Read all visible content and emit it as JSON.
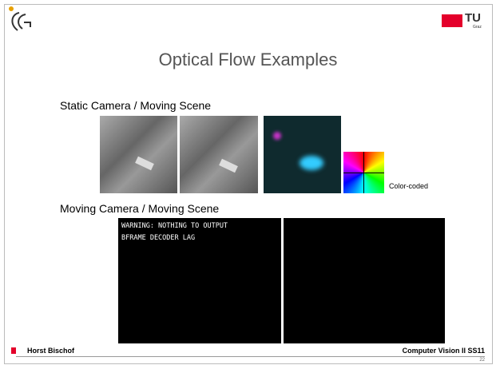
{
  "header": {
    "logo_text": "TU",
    "logo_subtext": "Graz"
  },
  "title": "Optical Flow Examples",
  "sections": [
    {
      "heading": "Static Camera / Moving Scene",
      "caption": "Color-coded"
    },
    {
      "heading": "Moving Camera / Moving Scene",
      "video_lines": [
        "WARNING: NOTHING TO OUTPUT",
        "BFRAME DECODER LAG"
      ]
    }
  ],
  "footer": {
    "author": "Horst Bischof",
    "course": "Computer Vision II SS11",
    "page": "22"
  }
}
